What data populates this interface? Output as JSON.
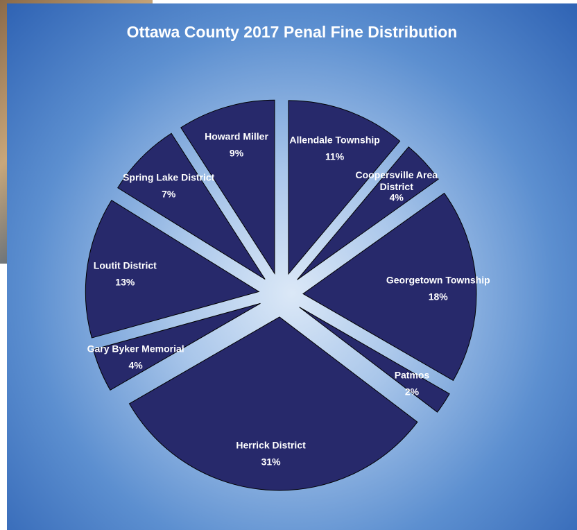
{
  "chart_data": {
    "type": "pie",
    "title": "Ottawa County 2017 Penal Fine Distribution",
    "categories": [
      "Allendale Township",
      "Coopersville Area District",
      "Georgetown Township",
      "Patmos",
      "Herrick District",
      "Gary Byker Memorial",
      "Loutit District",
      "Spring Lake District",
      "Howard Miller"
    ],
    "values": [
      11,
      4,
      18,
      2,
      31,
      4,
      13,
      7,
      9
    ],
    "value_labels": [
      "11%",
      "4%",
      "18%",
      "2%",
      "31%",
      "4%",
      "13%",
      "7%",
      "9%"
    ],
    "color": "#27296b"
  }
}
